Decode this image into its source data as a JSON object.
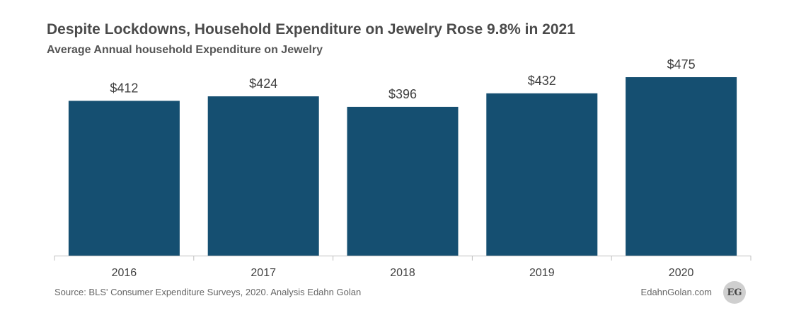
{
  "chart_data": {
    "type": "bar",
    "title": "Despite Lockdowns, Household Expenditure on Jewelry Rose 9.8% in 2021",
    "subtitle": "Average Annual household Expenditure on Jewelry",
    "categories": [
      "2016",
      "2017",
      "2018",
      "2019",
      "2020"
    ],
    "values": [
      412,
      424,
      396,
      432,
      475
    ],
    "value_labels": [
      "$412",
      "$424",
      "$396",
      "$432",
      "$475"
    ],
    "xlabel": "",
    "ylabel": "",
    "ylim": [
      0,
      475
    ],
    "bar_color": "#154f71",
    "grid": false,
    "legend": "none"
  },
  "footer": {
    "source": "Source: BLS' Consumer Expenditure Surveys, 2020. Analysis Edahn Golan",
    "site": "EdahnGolan.com",
    "logo_text": "EG"
  }
}
